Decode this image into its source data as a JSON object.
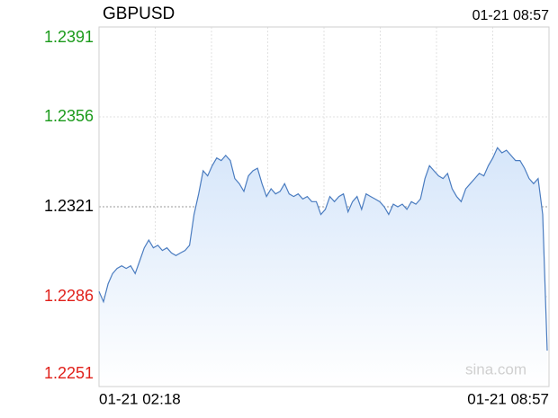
{
  "chart_data": {
    "type": "line",
    "title": "GBPUSD",
    "time": "01-21 08:57",
    "watermark": "sina.com",
    "x_labels": [
      "01-21 02:18",
      "01-21 08:57"
    ],
    "values": [
      1.2288,
      1.2284,
      1.2291,
      1.2295,
      1.2297,
      1.2298,
      1.2297,
      1.2298,
      1.2295,
      1.23,
      1.2305,
      1.2308,
      1.2305,
      1.2306,
      1.2304,
      1.2305,
      1.2303,
      1.2302,
      1.2303,
      1.2304,
      1.2306,
      1.2318,
      1.2326,
      1.2335,
      1.2333,
      1.2337,
      1.234,
      1.2339,
      1.2341,
      1.2339,
      1.2332,
      1.233,
      1.2327,
      1.2333,
      1.2335,
      1.2336,
      1.233,
      1.2325,
      1.2328,
      1.2326,
      1.2327,
      1.233,
      1.2326,
      1.2325,
      1.2326,
      1.2324,
      1.2325,
      1.2323,
      1.2323,
      1.2318,
      1.232,
      1.2325,
      1.2323,
      1.2325,
      1.2326,
      1.2319,
      1.2323,
      1.2325,
      1.232,
      1.2326,
      1.2325,
      1.2324,
      1.2323,
      1.2321,
      1.2318,
      1.2322,
      1.2321,
      1.2322,
      1.232,
      1.2323,
      1.2322,
      1.2324,
      1.2332,
      1.2337,
      1.2335,
      1.2333,
      1.2332,
      1.2334,
      1.2328,
      1.2325,
      1.2323,
      1.2328,
      1.233,
      1.2332,
      1.2334,
      1.2333,
      1.2337,
      1.234,
      1.2344,
      1.2342,
      1.2343,
      1.2341,
      1.2339,
      1.2339,
      1.2336,
      1.2332,
      1.233,
      1.2332,
      1.2318,
      1.2265
    ],
    "color": "#4a7cc0",
    "ylim": [
      1.2251,
      1.2391
    ],
    "yticks": [
      1.2251,
      1.2286,
      1.2321,
      1.2356,
      1.2391
    ],
    "base": 1.2321,
    "up_color": "#1a9a1a",
    "down_color": "#e0201a",
    "grid": true,
    "x_grid_divisions": 8
  }
}
